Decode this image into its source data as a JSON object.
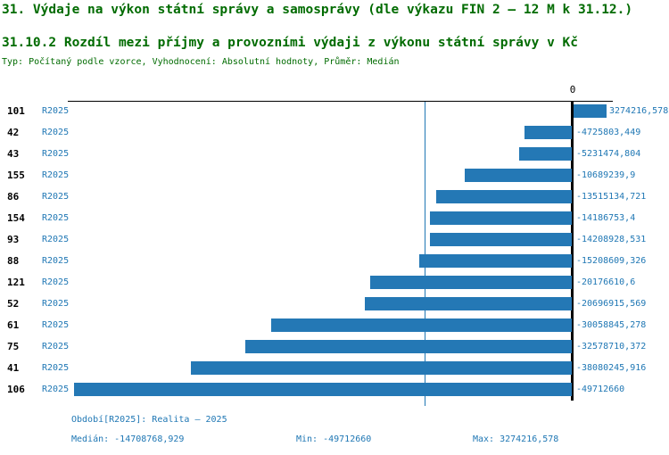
{
  "header": {
    "title": "31. Výdaje na výkon státní správy a samosprávy (dle výkazu FIN 2 – 12 M k 31.12.)",
    "subtitle": "31.10.2 Rozdíl mezi příjmy a provozními výdaji z výkonu státní správy v Kč",
    "meta": "Typ: Počítaný podle vzorce, Vyhodnocení: Absolutní hodnoty, Průměr: Medián"
  },
  "chart_data": {
    "type": "bar",
    "orientation": "horizontal",
    "title": "31.10.2 Rozdíl mezi příjmy a provozními výdaji z výkonu státní správy v Kč",
    "categories": [
      "101",
      "42",
      "43",
      "155",
      "86",
      "154",
      "93",
      "88",
      "121",
      "52",
      "61",
      "75",
      "41",
      "106"
    ],
    "series_label": "R2025",
    "values": [
      3274216.578,
      -4725803.449,
      -5231474.804,
      -10689239.9,
      -13515134.721,
      -14186753.4,
      -14208928.531,
      -15208609.326,
      -20176610.6,
      -20696915.569,
      -30058845.278,
      -32578710.372,
      -38080245.916,
      -49712660
    ],
    "value_labels": [
      "3274216,578",
      "-4725803,449",
      "-5231474,804",
      "-10689239,9",
      "-13515134,721",
      "-14186753,4",
      "-14208928,531",
      "-15208609,326",
      "-20176610,6",
      "-20696915,569",
      "-30058845,278",
      "-32578710,372",
      "-38080245,916",
      "-49712660"
    ],
    "xlim": [
      -49712660,
      3274216.578
    ],
    "zero_tick_label": "0",
    "median_value": -14708768.929,
    "grid": false,
    "legend_position": "none",
    "bar_color": "#2478b5",
    "median_line_color": "#1f77b4"
  },
  "footer": {
    "period": "Období[R2025]: Realita – 2025",
    "median": "Medián: -14708768,929",
    "min": "Min: -49712660",
    "max": "Max: 3274216,578"
  },
  "colors": {
    "heading_green": "#006b00",
    "text_blue": "#1f77b4",
    "bar_blue": "#2478b5",
    "axis_black": "#000000"
  }
}
